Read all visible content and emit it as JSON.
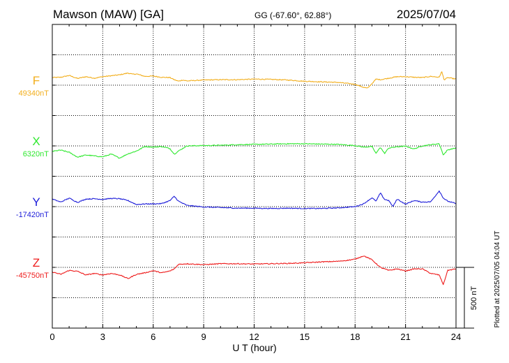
{
  "header": {
    "station": "Mawson (MAW)  [GA]",
    "coords": "GG (-67.60°,  62.88°)",
    "date": "2025/07/04"
  },
  "chart_data": {
    "type": "line",
    "title": "Mawson (MAW)  [GA]",
    "xlabel": "U T (hour)",
    "xlim": [
      0,
      24
    ],
    "xticks": [
      "0",
      "3",
      "6",
      "9",
      "12",
      "15",
      "18",
      "21",
      "24"
    ],
    "grid": true,
    "units_per_step": 100,
    "scale_label": "500 nT",
    "plotted_note": "Plotted at 2025/07/05 04:04 UT",
    "series": [
      {
        "name": "F",
        "baseline_label": "49340nT",
        "baseline": 49340,
        "color": "#f2ae1c",
        "unit": "nT",
        "x": [
          0,
          0.5,
          1,
          1.5,
          2,
          2.5,
          3,
          3.5,
          4,
          4.5,
          4.75,
          5,
          5.5,
          6,
          6.5,
          7,
          7.25,
          7.5,
          7.75,
          8,
          9,
          10,
          11,
          12,
          13,
          14,
          15,
          16,
          17,
          17.5,
          18,
          18.5,
          18.75,
          19,
          19.25,
          19.5,
          20,
          20.5,
          21,
          21.5,
          22,
          22.5,
          23,
          23.15,
          23.3,
          23.5,
          24
        ],
        "y": [
          49365,
          49366,
          49372,
          49362,
          49368,
          49363,
          49368,
          49371,
          49374,
          49380,
          49376,
          49377,
          49369,
          49370,
          49366,
          49365,
          49358,
          49353,
          49357,
          49354,
          49357,
          49358,
          49358,
          49360,
          49359,
          49357,
          49353,
          49351,
          49349,
          49346,
          49343,
          49333,
          49330,
          49345,
          49360,
          49358,
          49363,
          49368,
          49368,
          49366,
          49365,
          49369,
          49366,
          49385,
          49357,
          49365,
          49360
        ]
      },
      {
        "name": "X",
        "baseline_label": "6320nT",
        "baseline": 6320,
        "color": "#2ee82e",
        "unit": "nT",
        "x": [
          0,
          0.5,
          1,
          1.5,
          2,
          2.5,
          3,
          3.5,
          4,
          4.5,
          5,
          5.5,
          6,
          6.5,
          7,
          7.25,
          7.5,
          8,
          9,
          10,
          11,
          12,
          13,
          14,
          15,
          16,
          17,
          18,
          18.5,
          19,
          19.25,
          19.5,
          19.75,
          20,
          20.5,
          21,
          21.5,
          22,
          22.5,
          23,
          23.25,
          23.5,
          24
        ],
        "y": [
          6302,
          6306,
          6299,
          6283,
          6290,
          6287,
          6284,
          6293,
          6280,
          6294,
          6303,
          6318,
          6316,
          6318,
          6311,
          6293,
          6303,
          6320,
          6321,
          6322,
          6324,
          6325,
          6326,
          6327,
          6327,
          6326,
          6325,
          6321,
          6316,
          6318,
          6295,
          6316,
          6295,
          6313,
          6317,
          6319,
          6310,
          6320,
          6324,
          6327,
          6290,
          6307,
          6313
        ]
      },
      {
        "name": "Y",
        "baseline_label": "-17420nT",
        "baseline": -17420,
        "color": "#1c1cd9",
        "unit": "nT",
        "x": [
          0,
          0.5,
          1,
          1.5,
          2,
          2.5,
          3,
          3.5,
          4,
          4.5,
          5,
          5.5,
          6,
          6.5,
          7,
          7.25,
          7.5,
          8,
          9,
          10,
          11,
          12,
          13,
          14,
          15,
          16,
          17,
          18,
          18.5,
          19,
          19.25,
          19.5,
          19.75,
          20,
          20.25,
          20.5,
          21,
          21.5,
          22,
          22.5,
          23,
          23.25,
          23.5,
          24
        ],
        "y": [
          -17395,
          -17405,
          -17392,
          -17406,
          -17395,
          -17394,
          -17396,
          -17393,
          -17394,
          -17400,
          -17413,
          -17411,
          -17411,
          -17410,
          -17400,
          -17386,
          -17402,
          -17416,
          -17421,
          -17423,
          -17425,
          -17425,
          -17426,
          -17425,
          -17426,
          -17426,
          -17424,
          -17420,
          -17411,
          -17391,
          -17402,
          -17375,
          -17396,
          -17400,
          -17420,
          -17395,
          -17412,
          -17400,
          -17405,
          -17404,
          -17368,
          -17392,
          -17402,
          -17410
        ]
      },
      {
        "name": "Z",
        "baseline_label": "-45750nT",
        "baseline": -45750,
        "color": "#ee1c1c",
        "unit": "nT",
        "x": [
          0,
          0.5,
          1,
          1.5,
          2,
          2.5,
          3,
          3.5,
          4,
          4.5,
          5,
          5.5,
          6,
          6.5,
          7,
          7.25,
          7.5,
          8,
          9,
          10,
          11,
          12,
          13,
          14,
          15,
          16,
          17,
          17.5,
          18,
          18.5,
          18.75,
          19,
          19.5,
          20,
          20.5,
          21,
          21.5,
          22,
          22.5,
          23,
          23.25,
          23.5,
          24
        ],
        "y": [
          -45765,
          -45773,
          -45760,
          -45763,
          -45775,
          -45770,
          -45775,
          -45770,
          -45775,
          -45787,
          -45773,
          -45768,
          -45761,
          -45768,
          -45762,
          -45755,
          -45740,
          -45738,
          -45741,
          -45738,
          -45738,
          -45739,
          -45738,
          -45737,
          -45735,
          -45732,
          -45730,
          -45727,
          -45723,
          -45712,
          -45718,
          -45725,
          -45750,
          -45760,
          -45755,
          -45762,
          -45755,
          -45755,
          -45770,
          -45775,
          -45807,
          -45760,
          -45755
        ]
      }
    ]
  }
}
